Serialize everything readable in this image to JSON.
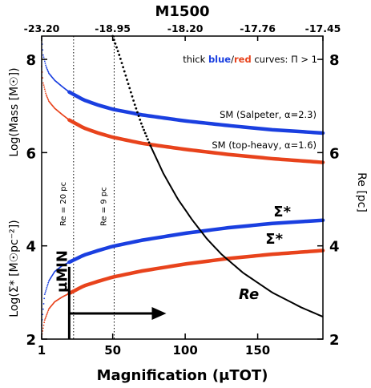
{
  "chart_data": {
    "type": "line",
    "xlabel": "Magnification (μTOT)",
    "xlim": [
      1,
      195
    ],
    "x_ticks": [
      1,
      50,
      100,
      150
    ],
    "top_axis": {
      "label": "M1500",
      "ticks": [
        {
          "x": 1,
          "label": "-23.20"
        },
        {
          "x": 50,
          "label": "-18.95"
        },
        {
          "x": 100,
          "label": "-18.20"
        },
        {
          "x": 150,
          "label": "-17.76"
        },
        {
          "x": 195,
          "label": "-17.45"
        }
      ]
    },
    "ylabel_upper": "Log(Mass [M☉])",
    "ylabel_lower": "Log(Σ* [M☉pc⁻²])",
    "ylim": [
      2,
      8.5
    ],
    "y_ticks": [
      2,
      4,
      6,
      8
    ],
    "ylabel_right": "Re [pc]",
    "y_right_ticks": [
      2,
      4,
      6,
      8
    ],
    "note": {
      "prefix": "thick ",
      "blue": "blue",
      "slash": "/",
      "red": "red",
      "suffix": " curves:  Π > 1"
    },
    "series": [
      {
        "name": "SM (Salpeter, α=2.3)",
        "color": "#1a3fe0",
        "thick_from": 20,
        "x": [
          1,
          2,
          4,
          6,
          10,
          15,
          20,
          30,
          40,
          50,
          70,
          100,
          130,
          160,
          195
        ],
        "y": [
          8.45,
          8.1,
          7.85,
          7.7,
          7.55,
          7.42,
          7.3,
          7.13,
          7.02,
          6.93,
          6.81,
          6.68,
          6.58,
          6.49,
          6.42
        ]
      },
      {
        "name": "SM (top-heavy, α=1.6)",
        "color": "#e8431c",
        "thick_from": 20,
        "x": [
          1,
          2,
          4,
          6,
          10,
          15,
          20,
          30,
          40,
          50,
          70,
          100,
          130,
          160,
          195
        ],
        "y": [
          7.85,
          7.5,
          7.25,
          7.1,
          6.95,
          6.82,
          6.7,
          6.53,
          6.42,
          6.33,
          6.2,
          6.07,
          5.96,
          5.87,
          5.79
        ]
      },
      {
        "name": "Σ*",
        "color": "#1a3fe0",
        "thick_from": 20,
        "x": [
          1,
          3,
          6,
          10,
          15,
          20,
          30,
          40,
          50,
          70,
          100,
          130,
          160,
          195
        ],
        "y": [
          2.3,
          2.95,
          3.25,
          3.45,
          3.57,
          3.65,
          3.8,
          3.9,
          3.99,
          4.12,
          4.27,
          4.39,
          4.48,
          4.55
        ]
      },
      {
        "name": "Σ*",
        "color": "#e8431c",
        "thick_from": 20,
        "x": [
          1,
          3,
          6,
          10,
          15,
          20,
          30,
          40,
          50,
          70,
          100,
          130,
          160,
          195
        ],
        "y": [
          2.05,
          2.4,
          2.65,
          2.8,
          2.9,
          2.98,
          3.14,
          3.24,
          3.33,
          3.46,
          3.61,
          3.73,
          3.82,
          3.9
        ]
      },
      {
        "name": "Re",
        "color": "#000000",
        "axis": "right",
        "dotted_until": 76,
        "x": [
          50,
          55,
          60,
          65,
          70,
          76,
          85,
          95,
          105,
          115,
          125,
          140,
          160,
          180,
          195
        ],
        "y": [
          8.5,
          8.05,
          7.55,
          7.05,
          6.6,
          6.15,
          5.55,
          5.0,
          4.55,
          4.15,
          3.82,
          3.42,
          3.0,
          2.68,
          2.48
        ]
      }
    ],
    "vlines": [
      {
        "x": 23,
        "label": "Re = 20 pc"
      },
      {
        "x": 51,
        "label": "Re = 9 pc"
      }
    ],
    "mu_min": {
      "x": 20,
      "label": "μMIN"
    },
    "re_label": "Re"
  }
}
